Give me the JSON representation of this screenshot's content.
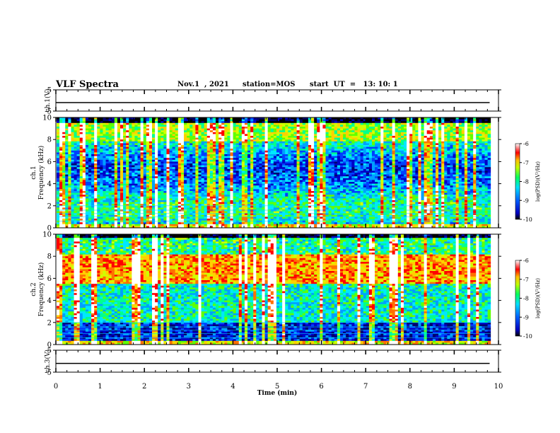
{
  "header": {
    "title": "VLF Spectra",
    "date": "Nov.1  , 2021",
    "station": "station=MOS",
    "start": "start  UT  =   13: 10: 1"
  },
  "chart_data": [
    {
      "type": "line",
      "panel": "ch1-waveform",
      "ylabel": "ch.1(V)",
      "ylim": [
        -5,
        5
      ],
      "yticks": [
        "5",
        "-5"
      ],
      "xlim": [
        0,
        10
      ],
      "series": [
        {
          "values": [
            -1,
            -1
          ],
          "x": [
            0,
            9.8
          ]
        }
      ]
    },
    {
      "type": "heatmap",
      "panel": "ch1-spectrogram",
      "ylabel": "ch.1 Frequency (kHz)",
      "ylim": [
        0,
        10
      ],
      "yticks": [
        "0",
        "2",
        "4",
        "6",
        "8",
        "10"
      ],
      "xlim": [
        0,
        10
      ],
      "colorbar": {
        "label": "log(PSD)(V²/Hz)",
        "range": [
          -10,
          -6
        ],
        "ticks": [
          "-6",
          "-7",
          "-8",
          "-9",
          "-10"
        ]
      }
    },
    {
      "type": "heatmap",
      "panel": "ch2-spectrogram",
      "ylabel": "ch.2 Frequency (kHz)",
      "ylim": [
        0,
        10
      ],
      "yticks": [
        "0",
        "2",
        "4",
        "6",
        "8",
        "10"
      ],
      "xlim": [
        0,
        10
      ],
      "colorbar": {
        "label": "log(PSD)(V²/Hz)",
        "range": [
          -10,
          -6
        ],
        "ticks": [
          "-6",
          "-7",
          "-8",
          "-9",
          "-10"
        ]
      }
    },
    {
      "type": "line",
      "panel": "ch3-waveform",
      "ylabel": "ch.3(V)",
      "ylim": [
        -5,
        5
      ],
      "yticks": [
        "5",
        "-5"
      ],
      "xlim": [
        0,
        10
      ],
      "xlabel": "Time  (min)",
      "xticks": [
        "0",
        "1",
        "2",
        "3",
        "4",
        "5",
        "6",
        "7",
        "8",
        "9",
        "10"
      ],
      "series": [
        {
          "values": [
            -1,
            -1
          ],
          "x": [
            0,
            9.8
          ]
        }
      ]
    }
  ],
  "colors": {
    "axis": "#000000",
    "colormap": [
      "#000080",
      "#0000ff",
      "#00a0ff",
      "#00ffff",
      "#00ff80",
      "#80ff00",
      "#ffff00",
      "#ff8000",
      "#ff0000",
      "#ffffff"
    ]
  }
}
